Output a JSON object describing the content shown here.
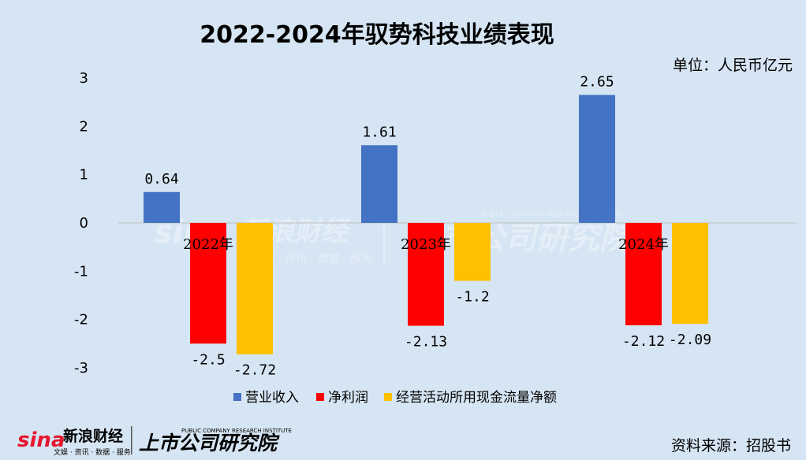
{
  "header": {
    "title": "2022-2024年驭势科技业绩表现",
    "unit": "单位：人民币亿元"
  },
  "footer": {
    "source": "资料来源：招股书"
  },
  "logos": {
    "sina": "sina",
    "sina_name": "新浪财经",
    "sina_sub": "文娱 · 资讯 · 数据 · 服务",
    "institute": "上市公司研究院",
    "institute_en": "PUBLIC COMPANY RESEARCH INSTITUTE"
  },
  "chart_data": {
    "type": "bar",
    "title": "2022-2024年驭势科技业绩表现",
    "unit": "单位：人民币亿元",
    "categories": [
      "2022年",
      "2023年",
      "2024年"
    ],
    "series": [
      {
        "name": "营业收入",
        "color": "#4472c4",
        "values": [
          0.64,
          1.61,
          2.65
        ],
        "labels": [
          "0.64",
          "1.61",
          "2.65"
        ]
      },
      {
        "name": "净利润",
        "color": "#ff0000",
        "values": [
          -2.5,
          -2.13,
          -2.12
        ],
        "labels": [
          "-2.5",
          "-2.13",
          "-2.12"
        ]
      },
      {
        "name": "经营活动所用现金流量净额",
        "color": "#ffc000",
        "values": [
          -2.72,
          -1.2,
          -2.09
        ],
        "labels": [
          "-2.72",
          "-1.2",
          "-2.09"
        ]
      }
    ],
    "yticks": [
      "3",
      "2",
      "1",
      "0",
      "-1",
      "-2",
      "-3"
    ],
    "ylim": [
      -3,
      3
    ],
    "grid": false,
    "legend": "bottom"
  }
}
